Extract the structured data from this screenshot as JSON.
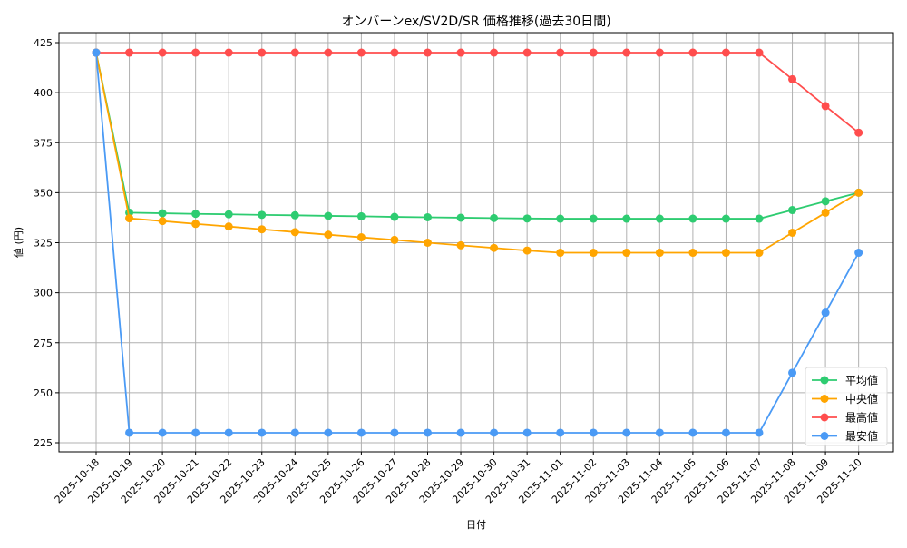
{
  "chart_data": {
    "type": "line",
    "title": "オンバーンex/SV2D/SR 価格推移(過去30日間)",
    "xlabel": "日付",
    "ylabel": "値 (円)",
    "ylim": [
      221,
      427
    ],
    "yticks": [
      225,
      250,
      275,
      300,
      325,
      350,
      375,
      400,
      425
    ],
    "grid": true,
    "legend_position": "lower right",
    "x": [
      "2025-10-18",
      "2025-10-19",
      "2025-10-20",
      "2025-10-21",
      "2025-10-22",
      "2025-10-23",
      "2025-10-24",
      "2025-10-25",
      "2025-10-26",
      "2025-10-27",
      "2025-10-28",
      "2025-10-29",
      "2025-10-30",
      "2025-10-31",
      "2025-11-01",
      "2025-11-02",
      "2025-11-03",
      "2025-11-04",
      "2025-11-05",
      "2025-11-06",
      "2025-11-07",
      "2025-11-08",
      "2025-11-09",
      "2025-11-10"
    ],
    "series": [
      {
        "name": "平均値",
        "color": "#2ecc71",
        "values": [
          420,
          340.0,
          339.7,
          339.4,
          339.2,
          338.9,
          338.7,
          338.4,
          338.2,
          337.9,
          337.7,
          337.5,
          337.3,
          337.1,
          337,
          337,
          337,
          337,
          337,
          337,
          337,
          341.3,
          345.7,
          350
        ]
      },
      {
        "name": "中央値",
        "color": "#ffa500",
        "values": [
          420,
          337.2,
          335.8,
          334.4,
          333.1,
          331.7,
          330.3,
          329.0,
          327.7,
          326.4,
          325.0,
          323.7,
          322.4,
          321.1,
          320,
          320,
          320,
          320,
          320,
          320,
          320,
          330,
          340,
          350
        ]
      },
      {
        "name": "最高値",
        "color": "#ff4d4d",
        "values": [
          420,
          420,
          420,
          420,
          420,
          420,
          420,
          420,
          420,
          420,
          420,
          420,
          420,
          420,
          420,
          420,
          420,
          420,
          420,
          420,
          420,
          406.7,
          393.3,
          380
        ]
      },
      {
        "name": "最安値",
        "color": "#4a9af5",
        "values": [
          420,
          230,
          230,
          230,
          230,
          230,
          230,
          230,
          230,
          230,
          230,
          230,
          230,
          230,
          230,
          230,
          230,
          230,
          230,
          230,
          230,
          260,
          290,
          320
        ]
      }
    ]
  }
}
